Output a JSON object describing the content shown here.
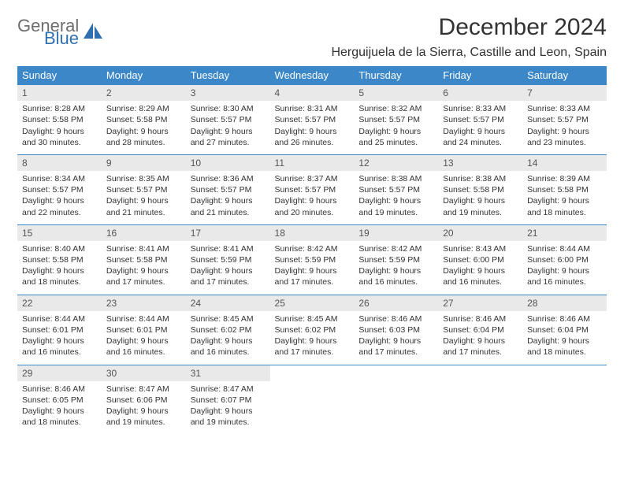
{
  "logo": {
    "text1": "General",
    "text2": "Blue",
    "icon_color": "#2f6fb0"
  },
  "title": "December 2024",
  "subtitle": "Herguijuela de la Sierra, Castille and Leon, Spain",
  "weekdays": [
    "Sunday",
    "Monday",
    "Tuesday",
    "Wednesday",
    "Thursday",
    "Friday",
    "Saturday"
  ],
  "colors": {
    "header_bg": "#3b87c8",
    "header_text": "#ffffff",
    "daynum_bg": "#e9e9e9",
    "row_border": "#3b87c8"
  },
  "days": [
    {
      "n": "1",
      "sunrise": "8:28 AM",
      "sunset": "5:58 PM",
      "daylight": "9 hours and 30 minutes."
    },
    {
      "n": "2",
      "sunrise": "8:29 AM",
      "sunset": "5:58 PM",
      "daylight": "9 hours and 28 minutes."
    },
    {
      "n": "3",
      "sunrise": "8:30 AM",
      "sunset": "5:57 PM",
      "daylight": "9 hours and 27 minutes."
    },
    {
      "n": "4",
      "sunrise": "8:31 AM",
      "sunset": "5:57 PM",
      "daylight": "9 hours and 26 minutes."
    },
    {
      "n": "5",
      "sunrise": "8:32 AM",
      "sunset": "5:57 PM",
      "daylight": "9 hours and 25 minutes."
    },
    {
      "n": "6",
      "sunrise": "8:33 AM",
      "sunset": "5:57 PM",
      "daylight": "9 hours and 24 minutes."
    },
    {
      "n": "7",
      "sunrise": "8:33 AM",
      "sunset": "5:57 PM",
      "daylight": "9 hours and 23 minutes."
    },
    {
      "n": "8",
      "sunrise": "8:34 AM",
      "sunset": "5:57 PM",
      "daylight": "9 hours and 22 minutes."
    },
    {
      "n": "9",
      "sunrise": "8:35 AM",
      "sunset": "5:57 PM",
      "daylight": "9 hours and 21 minutes."
    },
    {
      "n": "10",
      "sunrise": "8:36 AM",
      "sunset": "5:57 PM",
      "daylight": "9 hours and 21 minutes."
    },
    {
      "n": "11",
      "sunrise": "8:37 AM",
      "sunset": "5:57 PM",
      "daylight": "9 hours and 20 minutes."
    },
    {
      "n": "12",
      "sunrise": "8:38 AM",
      "sunset": "5:57 PM",
      "daylight": "9 hours and 19 minutes."
    },
    {
      "n": "13",
      "sunrise": "8:38 AM",
      "sunset": "5:58 PM",
      "daylight": "9 hours and 19 minutes."
    },
    {
      "n": "14",
      "sunrise": "8:39 AM",
      "sunset": "5:58 PM",
      "daylight": "9 hours and 18 minutes."
    },
    {
      "n": "15",
      "sunrise": "8:40 AM",
      "sunset": "5:58 PM",
      "daylight": "9 hours and 18 minutes."
    },
    {
      "n": "16",
      "sunrise": "8:41 AM",
      "sunset": "5:58 PM",
      "daylight": "9 hours and 17 minutes."
    },
    {
      "n": "17",
      "sunrise": "8:41 AM",
      "sunset": "5:59 PM",
      "daylight": "9 hours and 17 minutes."
    },
    {
      "n": "18",
      "sunrise": "8:42 AM",
      "sunset": "5:59 PM",
      "daylight": "9 hours and 17 minutes."
    },
    {
      "n": "19",
      "sunrise": "8:42 AM",
      "sunset": "5:59 PM",
      "daylight": "9 hours and 16 minutes."
    },
    {
      "n": "20",
      "sunrise": "8:43 AM",
      "sunset": "6:00 PM",
      "daylight": "9 hours and 16 minutes."
    },
    {
      "n": "21",
      "sunrise": "8:44 AM",
      "sunset": "6:00 PM",
      "daylight": "9 hours and 16 minutes."
    },
    {
      "n": "22",
      "sunrise": "8:44 AM",
      "sunset": "6:01 PM",
      "daylight": "9 hours and 16 minutes."
    },
    {
      "n": "23",
      "sunrise": "8:44 AM",
      "sunset": "6:01 PM",
      "daylight": "9 hours and 16 minutes."
    },
    {
      "n": "24",
      "sunrise": "8:45 AM",
      "sunset": "6:02 PM",
      "daylight": "9 hours and 16 minutes."
    },
    {
      "n": "25",
      "sunrise": "8:45 AM",
      "sunset": "6:02 PM",
      "daylight": "9 hours and 17 minutes."
    },
    {
      "n": "26",
      "sunrise": "8:46 AM",
      "sunset": "6:03 PM",
      "daylight": "9 hours and 17 minutes."
    },
    {
      "n": "27",
      "sunrise": "8:46 AM",
      "sunset": "6:04 PM",
      "daylight": "9 hours and 17 minutes."
    },
    {
      "n": "28",
      "sunrise": "8:46 AM",
      "sunset": "6:04 PM",
      "daylight": "9 hours and 18 minutes."
    },
    {
      "n": "29",
      "sunrise": "8:46 AM",
      "sunset": "6:05 PM",
      "daylight": "9 hours and 18 minutes."
    },
    {
      "n": "30",
      "sunrise": "8:47 AM",
      "sunset": "6:06 PM",
      "daylight": "9 hours and 19 minutes."
    },
    {
      "n": "31",
      "sunrise": "8:47 AM",
      "sunset": "6:07 PM",
      "daylight": "9 hours and 19 minutes."
    }
  ],
  "labels": {
    "sunrise": "Sunrise:",
    "sunset": "Sunset:",
    "daylight": "Daylight:"
  }
}
